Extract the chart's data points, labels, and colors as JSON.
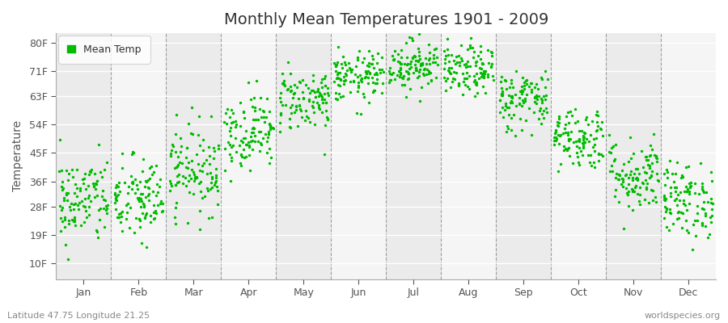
{
  "title": "Monthly Mean Temperatures 1901 - 2009",
  "ylabel": "Temperature",
  "xlabel_labels": [
    "Jan",
    "Feb",
    "Mar",
    "Apr",
    "May",
    "Jun",
    "Jul",
    "Aug",
    "Sep",
    "Oct",
    "Nov",
    "Dec"
  ],
  "ytick_labels": [
    "10F",
    "19F",
    "28F",
    "36F",
    "45F",
    "54F",
    "63F",
    "71F",
    "80F"
  ],
  "ytick_values": [
    10,
    19,
    28,
    36,
    45,
    54,
    63,
    71,
    80
  ],
  "ylim": [
    5,
    83
  ],
  "legend_label": "Mean Temp",
  "dot_color": "#00bb00",
  "bg_color": "#ffffff",
  "plot_bg_color_odd": "#ebebeb",
  "plot_bg_color_even": "#f5f5f5",
  "footer_left": "Latitude 47.75 Longitude 21.25",
  "footer_right": "worldspecies.org",
  "monthly_means_F": [
    30,
    30,
    40,
    52,
    62,
    69,
    73,
    71,
    62,
    50,
    38,
    30
  ],
  "monthly_stds_F": [
    7,
    7,
    7,
    6,
    5,
    4,
    4,
    4,
    5,
    5,
    6,
    6
  ],
  "n_years": 109,
  "seed": 42
}
